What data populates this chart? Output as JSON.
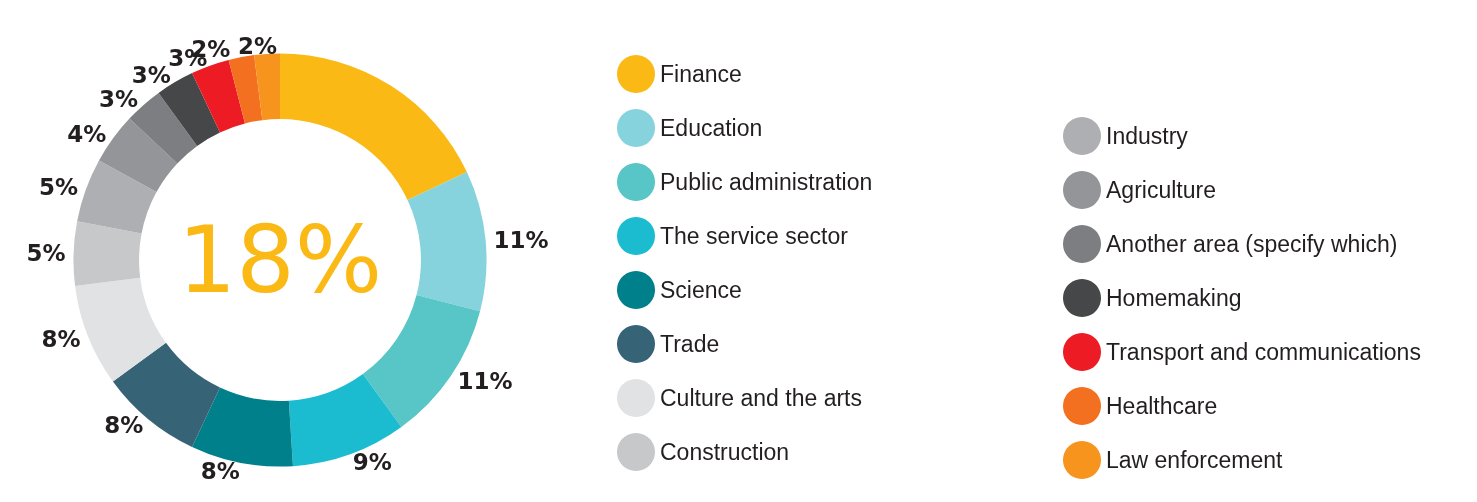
{
  "chart_data": {
    "type": "donut",
    "categories": [
      "Finance",
      "Education",
      "Public administration",
      "The service sector",
      "Science",
      "Trade",
      "Culture and the arts",
      "Construction",
      "Industry",
      "Agriculture",
      "Another area (specify which)",
      "Homemaking",
      "Transport and communications",
      "Healthcare",
      "Law enforcement"
    ],
    "values": [
      18,
      11,
      11,
      9,
      8,
      8,
      8,
      5,
      5,
      4,
      3,
      3,
      3,
      2,
      2
    ],
    "colors": [
      "#fbb915",
      "#86d3dd",
      "#58c6c6",
      "#1bbcd0",
      "#00808a",
      "#376377",
      "#e1e2e4",
      "#c7c8ca",
      "#aeafb2",
      "#939598",
      "#7d7e82",
      "#464749",
      "#ed1c24",
      "#f37021",
      "#f7941d"
    ],
    "value_labels": [
      "18%",
      "11%",
      "11%",
      "9%",
      "8%",
      "8%",
      "8%",
      "5%",
      "5%",
      "4%",
      "3%",
      "3%",
      "3%",
      "2%",
      "2%"
    ],
    "legend": "right"
  }
}
